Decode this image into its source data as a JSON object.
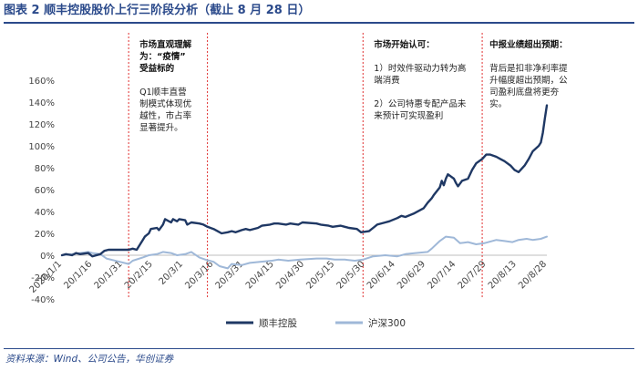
{
  "figure": {
    "title": "图表 2   顺丰控股股价上行三阶段分析（截止 8 月 28 日）",
    "source": "资料来源：Wind、公司公告，华创证券"
  },
  "colors": {
    "sf": "#1f3864",
    "hs300": "#9fb8d8",
    "marker": "#e03030",
    "title": "#2b4a8b"
  },
  "chart_data": {
    "type": "line",
    "title": "",
    "xlabel": "",
    "ylabel": "",
    "ylim": [
      -40,
      160
    ],
    "yticks": [
      -40,
      -20,
      0,
      20,
      40,
      60,
      80,
      100,
      120,
      140,
      160
    ],
    "ytick_labels": [
      "-40%",
      "-20%",
      "0%",
      "20%",
      "40%",
      "60%",
      "80%",
      "100%",
      "120%",
      "140%",
      "160%"
    ],
    "x_ticks": [
      "2020/1/1",
      "20/1/16",
      "20/1/31",
      "20/2/15",
      "20/3/1",
      "20/3/16",
      "20/3/31",
      "20/4/15",
      "20/4/30",
      "20/5/15",
      "20/5/30",
      "20/6/14",
      "20/6/29",
      "20/7/14",
      "20/7/29",
      "20/8/13",
      "20/8/28"
    ],
    "x_dates": [
      "2020-01-01",
      "2020-01-16",
      "2020-01-31",
      "2020-02-15",
      "2020-03-01",
      "2020-03-16",
      "2020-03-31",
      "2020-04-15",
      "2020-04-30",
      "2020-05-15",
      "2020-05-30",
      "2020-06-14",
      "2020-06-29",
      "2020-07-14",
      "2020-07-29",
      "2020-08-13",
      "2020-08-28"
    ],
    "grid": false,
    "legend": "bottom",
    "series": [
      {
        "name": "顺丰控股",
        "color": "#1f3864",
        "points": [
          [
            "2020-01-01",
            0
          ],
          [
            "2020-01-03",
            1
          ],
          [
            "2020-01-06",
            0
          ],
          [
            "2020-01-08",
            2
          ],
          [
            "2020-01-10",
            1
          ],
          [
            "2020-01-14",
            2
          ],
          [
            "2020-01-16",
            -1
          ],
          [
            "2020-01-20",
            1
          ],
          [
            "2020-01-22",
            4
          ],
          [
            "2020-01-24",
            5
          ],
          [
            "2020-02-03",
            5
          ],
          [
            "2020-02-05",
            6
          ],
          [
            "2020-02-07",
            5
          ],
          [
            "2020-02-10",
            14
          ],
          [
            "2020-02-11",
            17
          ],
          [
            "2020-02-13",
            20
          ],
          [
            "2020-02-14",
            24
          ],
          [
            "2020-02-17",
            25
          ],
          [
            "2020-02-18",
            23
          ],
          [
            "2020-02-20",
            28
          ],
          [
            "2020-02-21",
            33
          ],
          [
            "2020-02-24",
            30
          ],
          [
            "2020-02-25",
            33
          ],
          [
            "2020-02-27",
            31
          ],
          [
            "2020-02-28",
            33
          ],
          [
            "2020-03-02",
            32
          ],
          [
            "2020-03-03",
            28
          ],
          [
            "2020-03-05",
            30
          ],
          [
            "2020-03-09",
            29
          ],
          [
            "2020-03-11",
            28
          ],
          [
            "2020-03-13",
            26
          ],
          [
            "2020-03-16",
            24
          ],
          [
            "2020-03-18",
            22
          ],
          [
            "2020-03-20",
            20
          ],
          [
            "2020-03-23",
            21
          ],
          [
            "2020-03-25",
            22
          ],
          [
            "2020-03-27",
            21
          ],
          [
            "2020-03-30",
            23
          ],
          [
            "2020-04-01",
            24
          ],
          [
            "2020-04-03",
            23
          ],
          [
            "2020-04-07",
            25
          ],
          [
            "2020-04-09",
            27
          ],
          [
            "2020-04-13",
            28
          ],
          [
            "2020-04-15",
            29
          ],
          [
            "2020-04-17",
            29
          ],
          [
            "2020-04-21",
            28
          ],
          [
            "2020-04-23",
            29
          ],
          [
            "2020-04-27",
            28
          ],
          [
            "2020-04-29",
            30
          ],
          [
            "2020-05-06",
            29
          ],
          [
            "2020-05-08",
            28
          ],
          [
            "2020-05-12",
            27
          ],
          [
            "2020-05-14",
            26
          ],
          [
            "2020-05-18",
            27
          ],
          [
            "2020-05-20",
            26
          ],
          [
            "2020-05-22",
            25
          ],
          [
            "2020-05-26",
            24
          ],
          [
            "2020-05-28",
            21
          ],
          [
            "2020-06-01",
            22
          ],
          [
            "2020-06-03",
            25
          ],
          [
            "2020-06-05",
            28
          ],
          [
            "2020-06-09",
            30
          ],
          [
            "2020-06-11",
            31
          ],
          [
            "2020-06-15",
            34
          ],
          [
            "2020-06-17",
            36
          ],
          [
            "2020-06-19",
            35
          ],
          [
            "2020-06-23",
            38
          ],
          [
            "2020-06-28",
            43
          ],
          [
            "2020-06-30",
            48
          ],
          [
            "2020-07-02",
            52
          ],
          [
            "2020-07-03",
            55
          ],
          [
            "2020-07-06",
            62
          ],
          [
            "2020-07-07",
            68
          ],
          [
            "2020-07-08",
            64
          ],
          [
            "2020-07-09",
            70
          ],
          [
            "2020-07-10",
            74
          ],
          [
            "2020-07-13",
            70
          ],
          [
            "2020-07-14",
            66
          ],
          [
            "2020-07-15",
            63
          ],
          [
            "2020-07-17",
            68
          ],
          [
            "2020-07-20",
            70
          ],
          [
            "2020-07-22",
            78
          ],
          [
            "2020-07-24",
            84
          ],
          [
            "2020-07-27",
            88
          ],
          [
            "2020-07-29",
            92
          ],
          [
            "2020-07-31",
            92
          ],
          [
            "2020-08-03",
            90
          ],
          [
            "2020-08-05",
            88
          ],
          [
            "2020-08-07",
            86
          ],
          [
            "2020-08-10",
            82
          ],
          [
            "2020-08-12",
            78
          ],
          [
            "2020-08-14",
            76
          ],
          [
            "2020-08-17",
            82
          ],
          [
            "2020-08-19",
            88
          ],
          [
            "2020-08-21",
            95
          ],
          [
            "2020-08-24",
            100
          ],
          [
            "2020-08-25",
            103
          ],
          [
            "2020-08-26",
            112
          ],
          [
            "2020-08-27",
            125
          ],
          [
            "2020-08-28",
            137
          ]
        ]
      },
      {
        "name": "沪深300",
        "color": "#9fb8d8",
        "points": [
          [
            "2020-01-01",
            0
          ],
          [
            "2020-01-06",
            1
          ],
          [
            "2020-01-10",
            2
          ],
          [
            "2020-01-14",
            3
          ],
          [
            "2020-01-16",
            2
          ],
          [
            "2020-01-20",
            1
          ],
          [
            "2020-01-23",
            -3
          ],
          [
            "2020-02-03",
            -8
          ],
          [
            "2020-02-05",
            -5
          ],
          [
            "2020-02-10",
            -2
          ],
          [
            "2020-02-13",
            0
          ],
          [
            "2020-02-17",
            1
          ],
          [
            "2020-02-20",
            3
          ],
          [
            "2020-02-24",
            2
          ],
          [
            "2020-02-27",
            0
          ],
          [
            "2020-03-02",
            1
          ],
          [
            "2020-03-05",
            3
          ],
          [
            "2020-03-09",
            -2
          ],
          [
            "2020-03-12",
            -4
          ],
          [
            "2020-03-16",
            -6
          ],
          [
            "2020-03-19",
            -10
          ],
          [
            "2020-03-23",
            -12
          ],
          [
            "2020-03-25",
            -8
          ],
          [
            "2020-03-30",
            -9
          ],
          [
            "2020-04-03",
            -7
          ],
          [
            "2020-04-08",
            -6
          ],
          [
            "2020-04-14",
            -5
          ],
          [
            "2020-04-17",
            -4
          ],
          [
            "2020-04-22",
            -5
          ],
          [
            "2020-04-28",
            -4
          ],
          [
            "2020-05-06",
            -3
          ],
          [
            "2020-05-11",
            -3
          ],
          [
            "2020-05-15",
            -4
          ],
          [
            "2020-05-20",
            -4
          ],
          [
            "2020-05-25",
            -5
          ],
          [
            "2020-05-29",
            -4
          ],
          [
            "2020-06-03",
            -1
          ],
          [
            "2020-06-09",
            0
          ],
          [
            "2020-06-15",
            -1
          ],
          [
            "2020-06-19",
            1
          ],
          [
            "2020-06-24",
            2
          ],
          [
            "2020-06-30",
            3
          ],
          [
            "2020-07-02",
            6
          ],
          [
            "2020-07-06",
            13
          ],
          [
            "2020-07-09",
            17
          ],
          [
            "2020-07-13",
            16
          ],
          [
            "2020-07-16",
            11
          ],
          [
            "2020-07-20",
            12
          ],
          [
            "2020-07-24",
            10
          ],
          [
            "2020-07-28",
            11
          ],
          [
            "2020-08-03",
            14
          ],
          [
            "2020-08-07",
            13
          ],
          [
            "2020-08-11",
            12
          ],
          [
            "2020-08-14",
            14
          ],
          [
            "2020-08-18",
            15
          ],
          [
            "2020-08-21",
            14
          ],
          [
            "2020-08-25",
            15
          ],
          [
            "2020-08-28",
            17
          ]
        ]
      }
    ],
    "phase_markers": [
      "2020-02-03",
      "2020-03-13",
      "2020-05-29",
      "2020-07-27"
    ],
    "annotations": [
      {
        "lines": [
          {
            "text": "市场直观理解",
            "bold": true
          },
          {
            "text": "为：“疫情”",
            "bold": true
          },
          {
            "text": "受益标的",
            "bold": true
          },
          {
            "text": "",
            "bold": false
          },
          {
            "text": "Q1顺丰直营",
            "bold": false
          },
          {
            "text": "制模式体现优",
            "bold": false
          },
          {
            "text": "越性，市占率",
            "bold": false
          },
          {
            "text": "显著提升。",
            "bold": false
          }
        ]
      },
      {
        "lines": [
          {
            "text": "市场开始认可：",
            "bold": true
          },
          {
            "text": "",
            "bold": false
          },
          {
            "text": "1）时效件驱动力转为高",
            "bold": false
          },
          {
            "text": "端消费",
            "bold": false
          },
          {
            "text": "",
            "bold": false
          },
          {
            "text": "2）公司特惠专配产品未",
            "bold": false
          },
          {
            "text": "来预计可实现盈利",
            "bold": false
          }
        ]
      },
      {
        "lines": [
          {
            "text": "中报业绩超出预期：",
            "bold": true
          },
          {
            "text": "",
            "bold": false
          },
          {
            "text": "背后是扣非净利率提",
            "bold": false
          },
          {
            "text": "升幅度超出预期，公",
            "bold": false
          },
          {
            "text": "司盈利底盘将更夯",
            "bold": false
          },
          {
            "text": "实。",
            "bold": false
          }
        ]
      }
    ]
  }
}
